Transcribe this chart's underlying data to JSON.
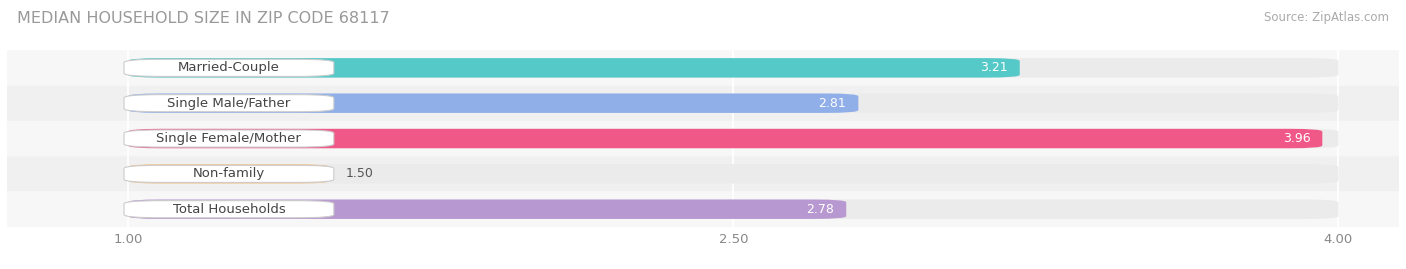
{
  "title": "MEDIAN HOUSEHOLD SIZE IN ZIP CODE 68117",
  "source": "Source: ZipAtlas.com",
  "categories": [
    "Married-Couple",
    "Single Male/Father",
    "Single Female/Mother",
    "Non-family",
    "Total Households"
  ],
  "values": [
    3.21,
    2.81,
    3.96,
    1.5,
    2.78
  ],
  "bar_colors": [
    "#55c8c8",
    "#90aee8",
    "#f05888",
    "#f5c890",
    "#b898d0"
  ],
  "xlim": [
    0.7,
    4.15
  ],
  "xmin": 1.0,
  "xmax": 4.0,
  "xticks": [
    1.0,
    2.5,
    4.0
  ],
  "background_color": "#ffffff",
  "bar_bg_color": "#ebebeb",
  "row_bg_even": "#f5f5f5",
  "row_bg_odd": "#ebebeb",
  "title_fontsize": 11.5,
  "source_fontsize": 8.5,
  "label_fontsize": 9.5,
  "value_fontsize": 9,
  "bar_height": 0.55,
  "label_text_color": "#444444",
  "value_text_dark": "#555555",
  "value_text_light": "#ffffff"
}
